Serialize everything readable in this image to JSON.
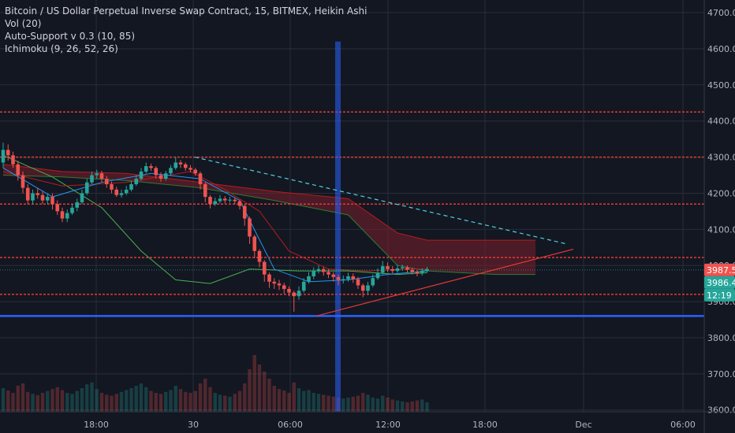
{
  "legend": {
    "title": "Bitcoin / US Dollar Perpetual Inverse Swap Contract, 15, BITMEX, Heikin Ashi",
    "line2": "Vol (20)",
    "line3": "Auto-Support v 0.3 (10, 85)",
    "line4": "Ichimoku (9, 26, 52, 26)"
  },
  "colors": {
    "background": "#131722",
    "grid": "#2a2e39",
    "up": "#26a69a",
    "down": "#ef5350",
    "support": "#e53935",
    "blue_line": "#2962ff",
    "cloud": "#7a1f2b",
    "tenkan": "#2196f3",
    "kijun": "#b71c1c",
    "lagging": "#4caf50",
    "trend_dashed": "#4dd0e1"
  },
  "price_tags": {
    "last_price": "3987.5",
    "mark_price": "3986.4",
    "countdown": "12:19"
  },
  "chart_data": {
    "type": "candlestick",
    "y_axis": {
      "ticks": [
        3600,
        3700,
        3800,
        3900,
        4000,
        4100,
        4200,
        4300,
        4400,
        4500,
        4600,
        4700
      ],
      "ylim": [
        3595,
        4735
      ]
    },
    "x_axis": {
      "ticks": [
        "18:00",
        "30",
        "06:00",
        "12:00",
        "18:00",
        "Dec",
        "06:00"
      ]
    },
    "support_levels": [
      4425,
      4300,
      4170,
      4022,
      3920,
      3860
    ],
    "blue_level": 3860,
    "last_price": 3987.5,
    "candles": [
      [
        4285,
        4320,
        4340,
        4270
      ],
      [
        4320,
        4305,
        4335,
        4290
      ],
      [
        4305,
        4280,
        4315,
        4270
      ],
      [
        4280,
        4250,
        4290,
        4235
      ],
      [
        4250,
        4215,
        4260,
        4200
      ],
      [
        4215,
        4180,
        4225,
        4170
      ],
      [
        4180,
        4200,
        4210,
        4170
      ],
      [
        4200,
        4195,
        4215,
        4185
      ],
      [
        4195,
        4180,
        4205,
        4170
      ],
      [
        4180,
        4190,
        4200,
        4170
      ],
      [
        4190,
        4170,
        4200,
        4155
      ],
      [
        4170,
        4150,
        4180,
        4140
      ],
      [
        4150,
        4130,
        4160,
        4120
      ],
      [
        4130,
        4145,
        4155,
        4120
      ],
      [
        4145,
        4160,
        4170,
        4140
      ],
      [
        4160,
        4175,
        4185,
        4150
      ],
      [
        4175,
        4200,
        4210,
        4170
      ],
      [
        4200,
        4230,
        4240,
        4195
      ],
      [
        4230,
        4250,
        4260,
        4225
      ],
      [
        4250,
        4255,
        4265,
        4240
      ],
      [
        4255,
        4240,
        4262,
        4230
      ],
      [
        4240,
        4225,
        4248,
        4215
      ],
      [
        4225,
        4210,
        4232,
        4200
      ],
      [
        4210,
        4195,
        4218,
        4190
      ],
      [
        4195,
        4200,
        4210,
        4188
      ],
      [
        4200,
        4210,
        4220,
        4195
      ],
      [
        4210,
        4225,
        4235,
        4205
      ],
      [
        4225,
        4240,
        4250,
        4220
      ],
      [
        4240,
        4260,
        4270,
        4235
      ],
      [
        4260,
        4275,
        4285,
        4255
      ],
      [
        4275,
        4270,
        4282,
        4262
      ],
      [
        4270,
        4250,
        4275,
        4240
      ],
      [
        4250,
        4240,
        4258,
        4232
      ],
      [
        4240,
        4255,
        4262,
        4235
      ],
      [
        4255,
        4270,
        4278,
        4250
      ],
      [
        4270,
        4285,
        4300,
        4265
      ],
      [
        4285,
        4280,
        4292,
        4270
      ],
      [
        4280,
        4270,
        4285,
        4262
      ],
      [
        4270,
        4265,
        4278,
        4258
      ],
      [
        4265,
        4255,
        4270,
        4248
      ],
      [
        4255,
        4225,
        4260,
        4210
      ],
      [
        4225,
        4190,
        4230,
        4175
      ],
      [
        4190,
        4170,
        4195,
        4158
      ],
      [
        4170,
        4178,
        4188,
        4165
      ],
      [
        4178,
        4185,
        4195,
        4172
      ],
      [
        4185,
        4180,
        4192,
        4172
      ],
      [
        4180,
        4182,
        4190,
        4174
      ],
      [
        4182,
        4178,
        4188,
        4170
      ],
      [
        4178,
        4165,
        4182,
        4155
      ],
      [
        4165,
        4130,
        4170,
        4110
      ],
      [
        4130,
        4080,
        4135,
        4060
      ],
      [
        4080,
        4040,
        4085,
        4020
      ],
      [
        4040,
        4010,
        4045,
        3995
      ],
      [
        4010,
        3975,
        4015,
        3955
      ],
      [
        3975,
        3955,
        3980,
        3938
      ],
      [
        3955,
        3950,
        3965,
        3935
      ],
      [
        3950,
        3945,
        3960,
        3932
      ],
      [
        3945,
        3935,
        3952,
        3922
      ],
      [
        3935,
        3925,
        3942,
        3915
      ],
      [
        3925,
        3915,
        3930,
        3872
      ],
      [
        3915,
        3930,
        3942,
        3905
      ],
      [
        3930,
        3955,
        3965,
        3925
      ],
      [
        3955,
        3970,
        3982,
        3950
      ],
      [
        3970,
        3985,
        3995,
        3962
      ],
      [
        3985,
        3990,
        4000,
        3978
      ],
      [
        3990,
        3982,
        3996,
        3972
      ],
      [
        3982,
        3975,
        3990,
        3965
      ],
      [
        3975,
        3968,
        3982,
        3955
      ],
      [
        3968,
        3960,
        3975,
        3945
      ],
      [
        3960,
        3962,
        3972,
        3950
      ],
      [
        3962,
        3970,
        3980,
        3955
      ],
      [
        3970,
        3962,
        3978,
        3952
      ],
      [
        3962,
        3945,
        3968,
        3935
      ],
      [
        3945,
        3930,
        3950,
        3912
      ],
      [
        3930,
        3945,
        3955,
        3920
      ],
      [
        3945,
        3965,
        3975,
        3940
      ],
      [
        3965,
        3980,
        3992,
        3960
      ],
      [
        3980,
        3998,
        4012,
        3975
      ],
      [
        3998,
        3990,
        4008,
        3982
      ],
      [
        3990,
        3985,
        3998,
        3978
      ],
      [
        3985,
        3992,
        4002,
        3980
      ],
      [
        3992,
        3995,
        4002,
        3985
      ],
      [
        3995,
        3988,
        4000,
        3980
      ],
      [
        3988,
        3982,
        3992,
        3975
      ],
      [
        3982,
        3978,
        3988,
        3970
      ],
      [
        3978,
        3985,
        3992,
        3972
      ],
      [
        3985,
        3990,
        3996,
        3980
      ]
    ],
    "volume": [
      50,
      45,
      40,
      55,
      60,
      42,
      38,
      35,
      40,
      44,
      48,
      52,
      46,
      40,
      38,
      44,
      50,
      58,
      62,
      48,
      40,
      36,
      34,
      38,
      42,
      46,
      50,
      55,
      60,
      52,
      44,
      40,
      38,
      42,
      46,
      55,
      48,
      42,
      40,
      44,
      60,
      70,
      52,
      40,
      36,
      34,
      32,
      38,
      44,
      60,
      90,
      120,
      100,
      85,
      70,
      55,
      48,
      45,
      40,
      62,
      50,
      44,
      46,
      40,
      38,
      36,
      34,
      32,
      30,
      28,
      30,
      32,
      34,
      40,
      36,
      30,
      28,
      34,
      30,
      26,
      24,
      22,
      20,
      22,
      24,
      26,
      20
    ],
    "ichimoku": {
      "tenkan": [
        [
          0,
          4270
        ],
        [
          10,
          4190
        ],
        [
          20,
          4230
        ],
        [
          30,
          4255
        ],
        [
          40,
          4240
        ],
        [
          48,
          4180
        ],
        [
          55,
          3990
        ],
        [
          62,
          3955
        ],
        [
          70,
          3960
        ],
        [
          78,
          3975
        ],
        [
          86,
          3985
        ]
      ],
      "kijun": [
        [
          0,
          4260
        ],
        [
          12,
          4220
        ],
        [
          25,
          4230
        ],
        [
          38,
          4260
        ],
        [
          45,
          4210
        ],
        [
          52,
          4150
        ],
        [
          58,
          4040
        ],
        [
          66,
          3990
        ],
        [
          74,
          3985
        ],
        [
          82,
          3990
        ],
        [
          86,
          3990
        ]
      ],
      "lagging": [
        [
          0,
          4305
        ],
        [
          10,
          4245
        ],
        [
          20,
          4160
        ],
        [
          28,
          4040
        ],
        [
          35,
          3960
        ],
        [
          42,
          3950
        ],
        [
          50,
          3990
        ],
        [
          60,
          3985
        ],
        [
          70,
          3985
        ],
        [
          80,
          3975
        ],
        [
          86,
          3980
        ]
      ],
      "cloud_upper": [
        [
          0,
          4280
        ],
        [
          12,
          4260
        ],
        [
          25,
          4255
        ],
        [
          40,
          4230
        ],
        [
          55,
          4205
        ],
        [
          70,
          4185
        ],
        [
          80,
          4090
        ],
        [
          86,
          4070
        ],
        [
          100,
          4070
        ],
        [
          108,
          4070
        ]
      ],
      "cloud_lower": [
        [
          0,
          4250
        ],
        [
          12,
          4245
        ],
        [
          25,
          4235
        ],
        [
          40,
          4215
        ],
        [
          55,
          4180
        ],
        [
          70,
          4140
        ],
        [
          80,
          4000
        ],
        [
          86,
          3985
        ],
        [
          100,
          3975
        ],
        [
          108,
          3975
        ]
      ]
    },
    "trend_dashed": [
      [
        4300,
        0.265
      ],
      [
        4060,
        0.77
      ]
    ],
    "trend_solid": [
      [
        3860,
        0.43
      ],
      [
        4045,
        0.78
      ]
    ]
  }
}
